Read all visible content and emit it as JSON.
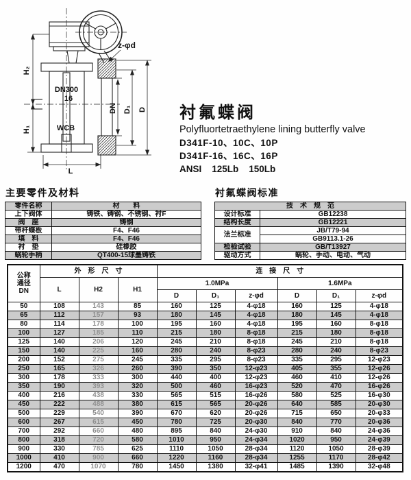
{
  "page": {
    "background": "#fefefe",
    "ink": "#111111",
    "row_shade": "#cccccc",
    "h2_column_color": "#8f8f8f"
  },
  "drawing": {
    "labels": {
      "h2": "H₂",
      "h1": "H₁",
      "l": "L",
      "dn": "DN",
      "d1": "D₁",
      "d": "D",
      "z_phi_d": "z-φd",
      "bore": "DN300",
      "pn": "16",
      "body_material": "WCB"
    }
  },
  "title_block": {
    "cn": "衬氟蝶阀",
    "en": "Polyfluortetraethylene lining butterfly valve",
    "model_pn10": "D341F-10、10C、10P",
    "model_pn16": "D341F-16、16C、16P",
    "ansi": "ANSI    125Lb    150Lb"
  },
  "parts_table": {
    "title": "主要零件及材料",
    "col1_header": "零件名称",
    "col2_header": "材　　料",
    "rows": [
      {
        "label": "上下阀体",
        "value": "铸铁、铸钢、不锈钢、衬F"
      },
      {
        "label": "阀　座",
        "value": "铸钢"
      },
      {
        "label": "带杆蝶板",
        "value": "F4、F46"
      },
      {
        "label": "填　料",
        "value": "F4、F46"
      },
      {
        "label": "衬　垫",
        "value": "硅橡胶"
      },
      {
        "label": "蜗轮手柄",
        "value": "QT400-15球墨铸铁"
      }
    ]
  },
  "standards_table": {
    "title": "衬氟蝶阀标准",
    "header": "技　术　规　范",
    "design_label": "设计标准",
    "design_value": "GB12238",
    "length_label": "结构长度",
    "length_value": "GB12221",
    "flange_label": "法兰标准",
    "flange_value1": "JB/T79-94",
    "flange_value2": "GB9113.1-26",
    "test_label": "检验试验",
    "test_value": "GB/T13927",
    "drive_label": "驱动方式",
    "drive_value": "蜗轮、手动、电动、气动"
  },
  "dimensions_table": {
    "dn_header_lines": [
      "公称",
      "通径",
      "DN"
    ],
    "outline_header": "外　形　尺　寸",
    "connect_header": "连　接　尺　寸",
    "col_l": "L",
    "col_h2": "H2",
    "col_h1": "H1",
    "p10": "1.0MPa",
    "p16": "1.6MPa",
    "col_d": "D",
    "col_d1": "D₁",
    "col_z": "z-φd",
    "rows": [
      [
        "50",
        "108",
        "143",
        "85",
        "160",
        "125",
        "4-φ18",
        "160",
        "125",
        "4-φ18"
      ],
      [
        "65",
        "112",
        "157",
        "93",
        "180",
        "145",
        "4-φ18",
        "180",
        "145",
        "4-φ18"
      ],
      [
        "80",
        "114",
        "178",
        "100",
        "195",
        "160",
        "4-φ18",
        "195",
        "160",
        "8-φ18"
      ],
      [
        "100",
        "127",
        "185",
        "110",
        "215",
        "180",
        "8-φ18",
        "215",
        "180",
        "8-φ18"
      ],
      [
        "125",
        "140",
        "206",
        "120",
        "245",
        "210",
        "8-φ18",
        "245",
        "210",
        "8-φ18"
      ],
      [
        "150",
        "140",
        "225",
        "160",
        "280",
        "240",
        "8-φ23",
        "280",
        "240",
        "8-φ23"
      ],
      [
        "200",
        "152",
        "275",
        "245",
        "335",
        "295",
        "8-φ23",
        "335",
        "295",
        "12-φ23"
      ],
      [
        "250",
        "165",
        "326",
        "260",
        "390",
        "350",
        "12-φ23",
        "405",
        "355",
        "12-φ26"
      ],
      [
        "300",
        "178",
        "333",
        "300",
        "440",
        "400",
        "12-φ23",
        "460",
        "410",
        "12-φ26"
      ],
      [
        "350",
        "190",
        "393",
        "320",
        "500",
        "460",
        "16-φ23",
        "520",
        "470",
        "16-φ26"
      ],
      [
        "400",
        "216",
        "438",
        "330",
        "565",
        "515",
        "16-φ26",
        "580",
        "525",
        "16-φ30"
      ],
      [
        "450",
        "222",
        "488",
        "380",
        "615",
        "565",
        "20-φ26",
        "640",
        "585",
        "20-φ30"
      ],
      [
        "500",
        "229",
        "540",
        "390",
        "670",
        "620",
        "20-φ26",
        "715",
        "650",
        "20-φ33"
      ],
      [
        "600",
        "267",
        "615",
        "450",
        "780",
        "725",
        "20-φ30",
        "840",
        "770",
        "20-φ36"
      ],
      [
        "700",
        "292",
        "660",
        "480",
        "895",
        "840",
        "24-φ30",
        "910",
        "840",
        "24-φ36"
      ],
      [
        "800",
        "318",
        "720",
        "580",
        "1010",
        "950",
        "24-φ34",
        "1020",
        "950",
        "24-φ39"
      ],
      [
        "900",
        "330",
        "785",
        "625",
        "1110",
        "1050",
        "28-φ34",
        "1120",
        "1050",
        "28-φ39"
      ],
      [
        "1000",
        "410",
        "900",
        "660",
        "1220",
        "1160",
        "28-φ34",
        "1255",
        "1170",
        "28-φ42"
      ],
      [
        "1200",
        "470",
        "1070",
        "780",
        "1450",
        "1380",
        "32-φ41",
        "1485",
        "1390",
        "32-φ48"
      ]
    ]
  }
}
